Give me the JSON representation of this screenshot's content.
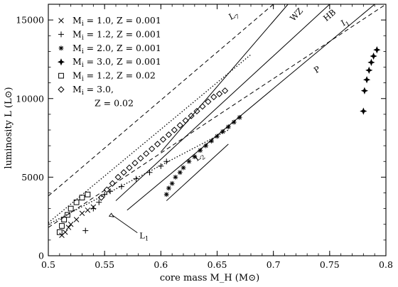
{
  "chart_data": {
    "type": "scatter",
    "title": "",
    "xlabel": "core mass  M_H  (M⊙)",
    "ylabel": "luminosity  L  (L⊙)",
    "xlim": [
      0.5,
      0.8
    ],
    "ylim": [
      0,
      16000
    ],
    "x_ticks": [
      0.5,
      0.55,
      0.6,
      0.65,
      0.7,
      0.75,
      0.8
    ],
    "x_tick_labels": [
      "0.5",
      "0.55",
      "0.6",
      "0.65",
      "0.7",
      "0.75",
      "0.8"
    ],
    "y_ticks": [
      0,
      5000,
      10000,
      15000
    ],
    "y_tick_labels": [
      "0",
      "5000",
      "10000",
      "15000"
    ],
    "legend_position": "top-left",
    "legend": [
      {
        "marker": "x",
        "label": "M_i = 1.0, Z = 0.001"
      },
      {
        "marker": "plus",
        "label": "M_i = 1.2, Z = 0.001"
      },
      {
        "marker": "asterisk",
        "label": "M_i = 2.0, Z = 0.001"
      },
      {
        "marker": "star4",
        "label": "M_i = 3.0, Z = 0.001"
      },
      {
        "marker": "square",
        "label": "M_i = 1.2, Z = 0.02"
      },
      {
        "marker": "diamond",
        "label": "M_i = 3.0,"
      },
      {
        "marker": "none",
        "label": "Z = 0.02"
      }
    ],
    "series": [
      {
        "marker": "x",
        "points": [
          [
            0.512,
            1300
          ],
          [
            0.515,
            1500
          ],
          [
            0.518,
            1800
          ],
          [
            0.52,
            2000
          ],
          [
            0.525,
            2300
          ],
          [
            0.53,
            2700
          ],
          [
            0.535,
            2900
          ],
          [
            0.54,
            3100
          ]
        ]
      },
      {
        "marker": "plus",
        "points": [
          [
            0.533,
            1600
          ],
          [
            0.54,
            3000
          ],
          [
            0.545,
            3400
          ],
          [
            0.55,
            3900
          ],
          [
            0.555,
            4100
          ],
          [
            0.565,
            4400
          ],
          [
            0.578,
            4900
          ],
          [
            0.59,
            5300
          ],
          [
            0.6,
            5700
          ],
          [
            0.605,
            6000
          ]
        ]
      },
      {
        "marker": "asterisk",
        "points": [
          [
            0.605,
            3900
          ],
          [
            0.607,
            4300
          ],
          [
            0.61,
            4600
          ],
          [
            0.613,
            5000
          ],
          [
            0.617,
            5300
          ],
          [
            0.62,
            5600
          ],
          [
            0.625,
            6000
          ],
          [
            0.63,
            6300
          ],
          [
            0.635,
            6700
          ],
          [
            0.64,
            7000
          ],
          [
            0.645,
            7300
          ],
          [
            0.65,
            7600
          ],
          [
            0.655,
            7900
          ],
          [
            0.66,
            8200
          ],
          [
            0.665,
            8500
          ],
          [
            0.67,
            8800
          ]
        ]
      },
      {
        "marker": "star4",
        "points": [
          [
            0.78,
            9200
          ],
          [
            0.781,
            10500
          ],
          [
            0.783,
            11200
          ],
          [
            0.785,
            11800
          ],
          [
            0.787,
            12300
          ],
          [
            0.789,
            12700
          ],
          [
            0.792,
            13100
          ]
        ]
      },
      {
        "marker": "square",
        "points": [
          [
            0.51,
            1500
          ],
          [
            0.512,
            1900
          ],
          [
            0.514,
            2300
          ],
          [
            0.517,
            2600
          ],
          [
            0.52,
            3000
          ],
          [
            0.525,
            3400
          ],
          [
            0.53,
            3700
          ],
          [
            0.535,
            3900
          ]
        ]
      },
      {
        "marker": "diamond",
        "points": [
          [
            0.547,
            3700
          ],
          [
            0.552,
            4200
          ],
          [
            0.557,
            4600
          ],
          [
            0.562,
            5000
          ],
          [
            0.567,
            5300
          ],
          [
            0.572,
            5600
          ],
          [
            0.577,
            5900
          ],
          [
            0.582,
            6200
          ],
          [
            0.587,
            6500
          ],
          [
            0.592,
            6800
          ],
          [
            0.597,
            7100
          ],
          [
            0.602,
            7400
          ],
          [
            0.607,
            7700
          ],
          [
            0.612,
            8000
          ],
          [
            0.617,
            8300
          ],
          [
            0.622,
            8600
          ],
          [
            0.627,
            8900
          ],
          [
            0.632,
            9200
          ],
          [
            0.637,
            9500
          ],
          [
            0.642,
            9800
          ],
          [
            0.647,
            10100
          ],
          [
            0.652,
            10300
          ],
          [
            0.657,
            10500
          ]
        ]
      }
    ],
    "lines": [
      {
        "label": "L_7",
        "style": "dashed",
        "points": [
          [
            0.5,
            3800
          ],
          [
            0.7,
            16000
          ]
        ]
      },
      {
        "label": "L_1",
        "style": "dashed",
        "points": [
          [
            0.5,
            1800
          ],
          [
            0.8,
            16000
          ]
        ]
      },
      {
        "label": "",
        "style": "dotted",
        "points": [
          [
            0.5,
            2100
          ],
          [
            0.68,
            12800
          ]
        ]
      },
      {
        "label": "",
        "style": "dotted",
        "points": [
          [
            0.5,
            2000
          ],
          [
            0.66,
            8000
          ]
        ]
      },
      {
        "label": "WZ",
        "style": "solid",
        "points": [
          [
            0.6,
            6600
          ],
          [
            0.713,
            16000
          ]
        ]
      },
      {
        "label": "HB",
        "style": "solid",
        "points": [
          [
            0.56,
            3500
          ],
          [
            0.75,
            16000
          ]
        ]
      },
      {
        "label": "P",
        "style": "solid",
        "points": [
          [
            0.57,
            2900
          ],
          [
            0.79,
            16000
          ]
        ]
      },
      {
        "label": "L_2",
        "style": "solid",
        "points": [
          [
            0.605,
            3500
          ],
          [
            0.66,
            7100
          ]
        ]
      }
    ],
    "annotations": [
      {
        "text": "L_7",
        "x": 0.662,
        "y": 15000
      },
      {
        "text": "WZ",
        "x": 0.718,
        "y": 14900
      },
      {
        "text": "HB",
        "x": 0.747,
        "y": 14900
      },
      {
        "text": "I_1",
        "x": 0.762,
        "y": 14600
      },
      {
        "text": "P",
        "x": 0.738,
        "y": 11600
      },
      {
        "text": "L_2",
        "x": 0.632,
        "y": 6000
      },
      {
        "text": "L_1",
        "x": 0.581,
        "y": 1100
      }
    ]
  }
}
